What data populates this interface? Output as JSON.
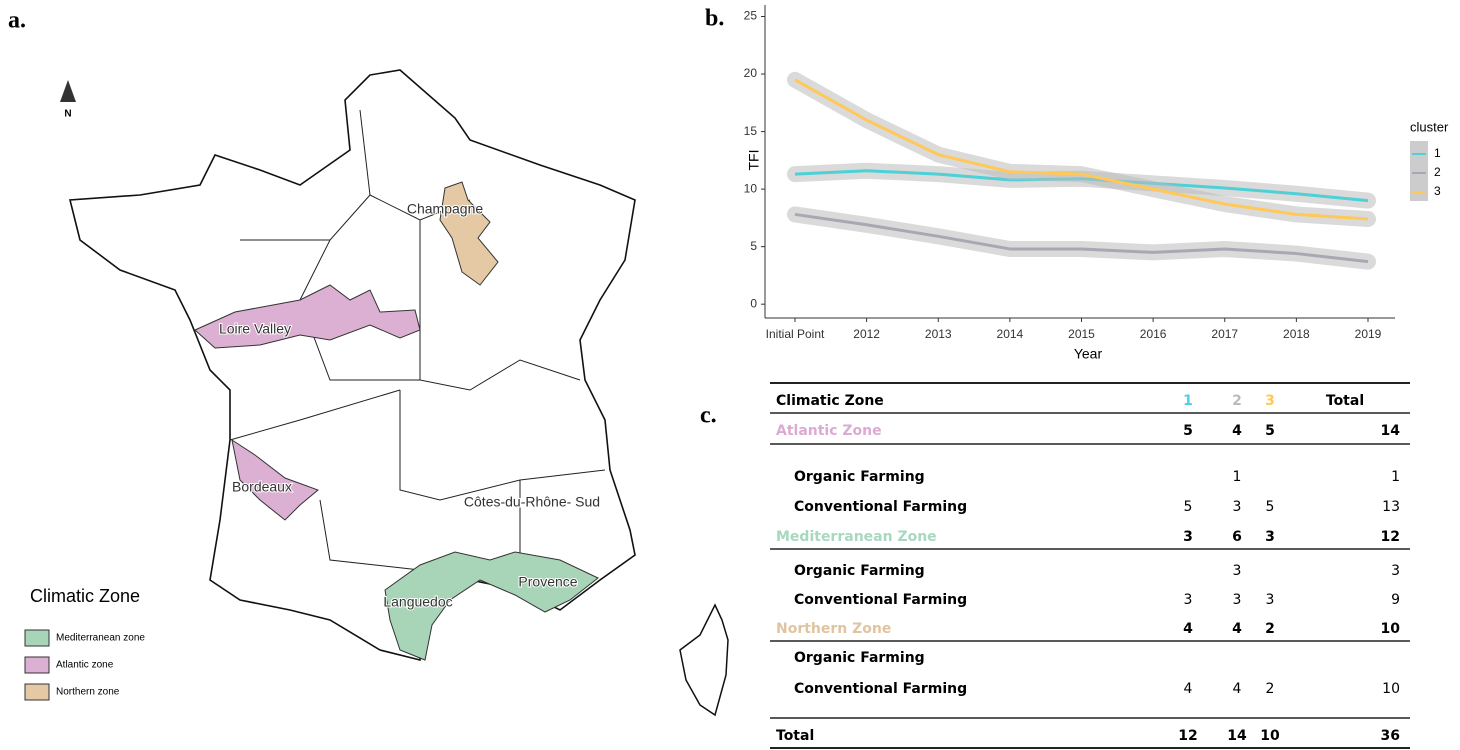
{
  "panels": [
    "a.",
    "b.",
    "c."
  ],
  "map": {
    "north": "N",
    "regions": [
      "Champagne",
      "Loire Valley",
      "Bordeaux",
      "Côtes-du-Rhône- Sud",
      "Languedoc",
      "Provence"
    ],
    "legend_title": "Climatic Zone",
    "legend": [
      {
        "label": "Mediterranean zone",
        "color": "#a8d5b8"
      },
      {
        "label": "Atlantic zone",
        "color": "#dcb0d2"
      },
      {
        "label": "Northern zone",
        "color": "#e5c9a5"
      }
    ]
  },
  "chart_data": {
    "type": "line",
    "y_label": "TFI",
    "x_label": "Year",
    "legend_title": "cluster",
    "categories": [
      "Initial Point",
      "2012",
      "2013",
      "2014",
      "2015",
      "2016",
      "2017",
      "2018",
      "2019"
    ],
    "series": [
      {
        "name": "1",
        "color": "#4dd0d6",
        "values": [
          11.3,
          11.6,
          11.3,
          10.8,
          10.9,
          10.5,
          10.1,
          9.6,
          9.0
        ]
      },
      {
        "name": "2",
        "color": "#a8a8b4",
        "values": [
          7.8,
          6.9,
          5.9,
          4.8,
          4.8,
          4.5,
          4.8,
          4.4,
          3.7
        ]
      },
      {
        "name": "3",
        "color": "#ffc857",
        "values": [
          19.5,
          16.0,
          13.0,
          11.5,
          11.3,
          10.0,
          8.7,
          7.8,
          7.4
        ]
      }
    ],
    "ylim": [
      -1.2,
      26
    ],
    "yticks": [
      0,
      5,
      10,
      15,
      20,
      25
    ],
    "grid": false
  },
  "table": {
    "header": [
      "Climatic Zone",
      "1",
      "2",
      "3",
      "Total"
    ],
    "header_colors": [
      null,
      "#4dd0e1",
      "#bbbbbb",
      "#ffc857",
      null
    ],
    "rows": [
      {
        "cells": [
          "Atlantic Zone",
          5,
          4,
          5,
          14
        ],
        "zone_color": "#dcaad2"
      },
      {
        "cells": [
          "Organic Farming",
          null,
          1,
          null,
          1
        ]
      },
      {
        "cells": [
          "Conventional Farming",
          5,
          3,
          5,
          13
        ]
      },
      {
        "cells": [
          "Mediterranean Zone",
          3,
          6,
          3,
          12
        ],
        "zone_color": "#a8d8c0"
      },
      {
        "cells": [
          "Organic Farming",
          null,
          3,
          null,
          3
        ]
      },
      {
        "cells": [
          "Conventional Farming",
          3,
          3,
          3,
          9
        ]
      },
      {
        "cells": [
          "Northern Zone",
          4,
          4,
          2,
          10
        ],
        "zone_color": "#e0c4a0"
      },
      {
        "cells": [
          "Organic Farming",
          null,
          null,
          null,
          null
        ]
      },
      {
        "cells": [
          "Conventional Farming",
          4,
          4,
          2,
          10
        ]
      },
      {
        "cells": [
          "Total",
          12,
          14,
          10,
          36
        ],
        "total": true
      }
    ]
  }
}
